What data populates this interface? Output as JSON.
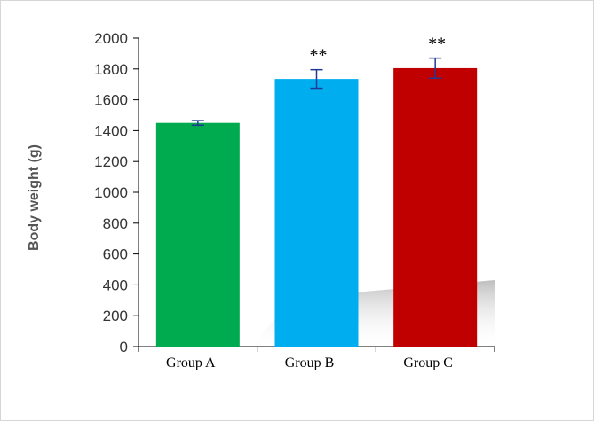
{
  "chart_data": {
    "type": "bar",
    "title": "",
    "xlabel": "",
    "ylabel": "Body weight (g)",
    "ylim": [
      0,
      2000
    ],
    "yticks": [
      0,
      200,
      400,
      600,
      800,
      1000,
      1200,
      1400,
      1600,
      1800,
      2000
    ],
    "categories": [
      "Group A",
      "Group B",
      "Group C"
    ],
    "values": [
      1450,
      1735,
      1805
    ],
    "errors": [
      15,
      60,
      65
    ],
    "annotations": [
      "",
      "**",
      "**"
    ],
    "colors": [
      "#00aa4f",
      "#00aeef",
      "#c00000"
    ],
    "error_bar_color": "#1f3a93",
    "grid": false,
    "legend": "none"
  }
}
